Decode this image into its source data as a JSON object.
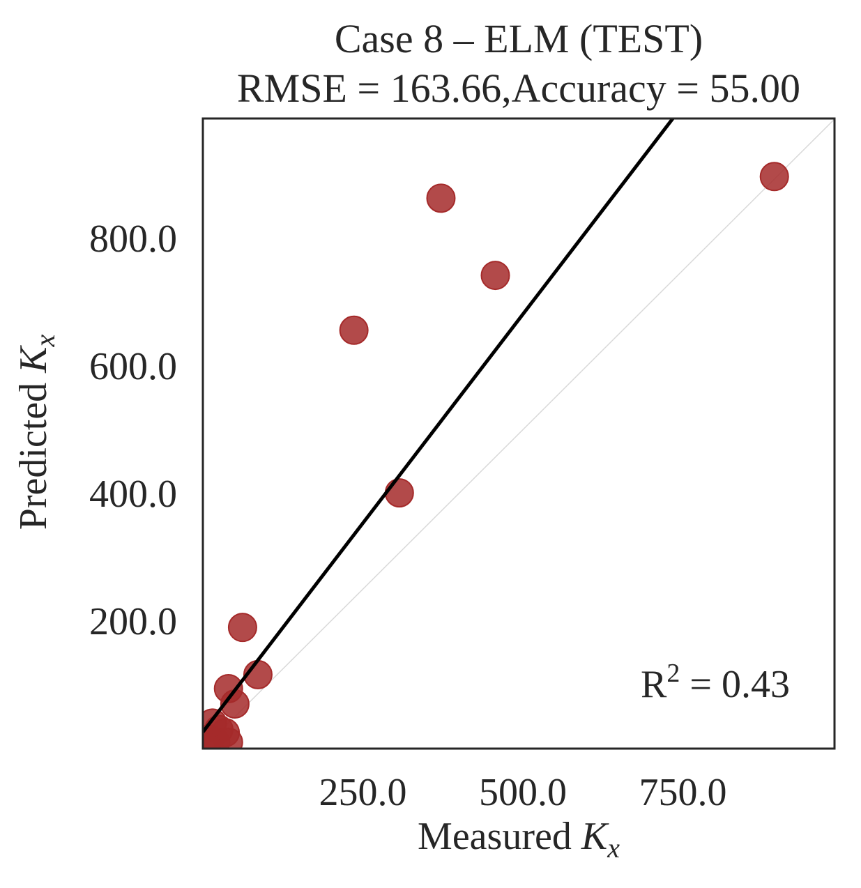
{
  "chart_data": {
    "type": "scatter",
    "title": "Case 8 – ELM (TEST)",
    "subtitle": "RMSE = 163.66,Accuracy = 55.00",
    "xlabel_main": "Measured ",
    "xlabel_symbol": "K",
    "xlabel_sub": "x",
    "ylabel_main": "Predicted ",
    "ylabel_symbol": "K",
    "ylabel_sub": "x",
    "xlim": [
      0,
      987
    ],
    "ylim": [
      0,
      988
    ],
    "x_ticks": [
      250,
      500,
      750
    ],
    "x_tick_labels": [
      "250.0",
      "500.0",
      "750.0"
    ],
    "y_ticks": [
      200,
      400,
      600,
      800
    ],
    "y_tick_labels": [
      "200.0",
      "400.0",
      "600.0",
      "800.0"
    ],
    "grid": false,
    "points": [
      {
        "x": 893,
        "y": 897
      },
      {
        "x": 372,
        "y": 863
      },
      {
        "x": 457,
        "y": 742
      },
      {
        "x": 236,
        "y": 656
      },
      {
        "x": 307,
        "y": 401
      },
      {
        "x": 62,
        "y": 190
      },
      {
        "x": 86,
        "y": 116
      },
      {
        "x": 40,
        "y": 94
      },
      {
        "x": 50,
        "y": 70
      },
      {
        "x": 15,
        "y": 40
      },
      {
        "x": 25,
        "y": 30
      },
      {
        "x": 35,
        "y": 25
      },
      {
        "x": 10,
        "y": 15
      },
      {
        "x": 20,
        "y": 10
      },
      {
        "x": 40,
        "y": 10
      },
      {
        "x": 5,
        "y": 5
      }
    ],
    "fit_line": {
      "slope": 1.31,
      "intercept": 26
    },
    "identity_line": true,
    "annotation": {
      "prefix": "R",
      "sup": "2",
      "suffix": " = 0.43"
    },
    "colors": {
      "points": "#a52a2a",
      "fit_line": "#000000",
      "identity_line": "#d9d9d9",
      "axes": "#262626"
    }
  }
}
